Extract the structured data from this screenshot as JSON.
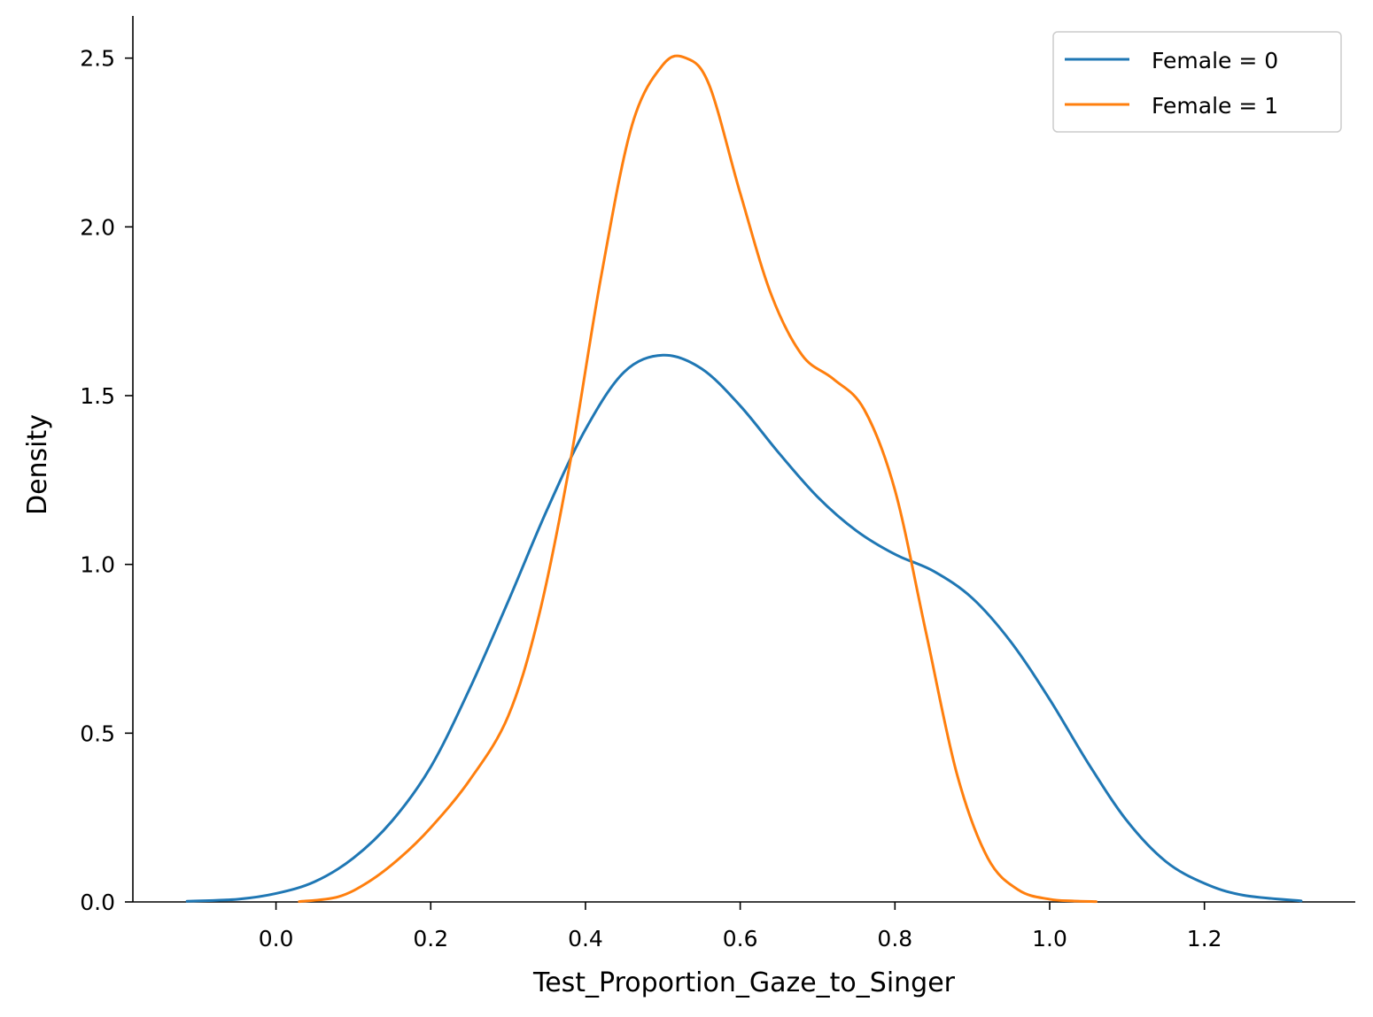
{
  "chart_data": {
    "type": "line",
    "title": "",
    "xlabel": "Test_Proportion_Gaze_to_Singer",
    "ylabel": "Density",
    "xlim": [
      -0.185,
      1.395
    ],
    "ylim": [
      0.0,
      2.625
    ],
    "x_ticks": [
      0.0,
      0.2,
      0.4,
      0.6,
      0.8,
      1.0,
      1.2
    ],
    "x_tick_labels": [
      "0.0",
      "0.2",
      "0.4",
      "0.6",
      "0.8",
      "1.0",
      "1.2"
    ],
    "y_ticks": [
      0.0,
      0.5,
      1.0,
      1.5,
      2.0,
      2.5
    ],
    "y_tick_labels": [
      "0.0",
      "0.5",
      "1.0",
      "1.5",
      "2.0",
      "2.5"
    ],
    "grid": false,
    "legend_position": "top-right",
    "series": [
      {
        "name": "Female = 0",
        "color": "#1f77b4",
        "x": [
          -0.115,
          -0.05,
          0.0,
          0.05,
          0.1,
          0.15,
          0.2,
          0.25,
          0.3,
          0.35,
          0.4,
          0.45,
          0.5,
          0.55,
          0.6,
          0.65,
          0.7,
          0.75,
          0.8,
          0.85,
          0.9,
          0.95,
          1.0,
          1.05,
          1.1,
          1.15,
          1.2,
          1.25,
          1.325
        ],
        "y": [
          0.002,
          0.008,
          0.025,
          0.06,
          0.13,
          0.24,
          0.4,
          0.63,
          0.89,
          1.16,
          1.4,
          1.57,
          1.62,
          1.58,
          1.47,
          1.33,
          1.2,
          1.1,
          1.03,
          0.98,
          0.9,
          0.77,
          0.6,
          0.41,
          0.24,
          0.12,
          0.055,
          0.02,
          0.003
        ]
      },
      {
        "name": "Female = 1",
        "color": "#ff7f0e",
        "x": [
          0.03,
          0.08,
          0.12,
          0.16,
          0.2,
          0.25,
          0.3,
          0.34,
          0.38,
          0.42,
          0.46,
          0.5,
          0.53,
          0.56,
          0.6,
          0.64,
          0.68,
          0.72,
          0.76,
          0.8,
          0.84,
          0.88,
          0.92,
          0.96,
          1.0,
          1.03,
          1.06
        ],
        "y": [
          0.001,
          0.015,
          0.06,
          0.13,
          0.22,
          0.36,
          0.55,
          0.85,
          1.3,
          1.85,
          2.3,
          2.48,
          2.5,
          2.42,
          2.1,
          1.8,
          1.62,
          1.55,
          1.46,
          1.22,
          0.8,
          0.38,
          0.13,
          0.035,
          0.008,
          0.003,
          0.001
        ]
      }
    ]
  }
}
